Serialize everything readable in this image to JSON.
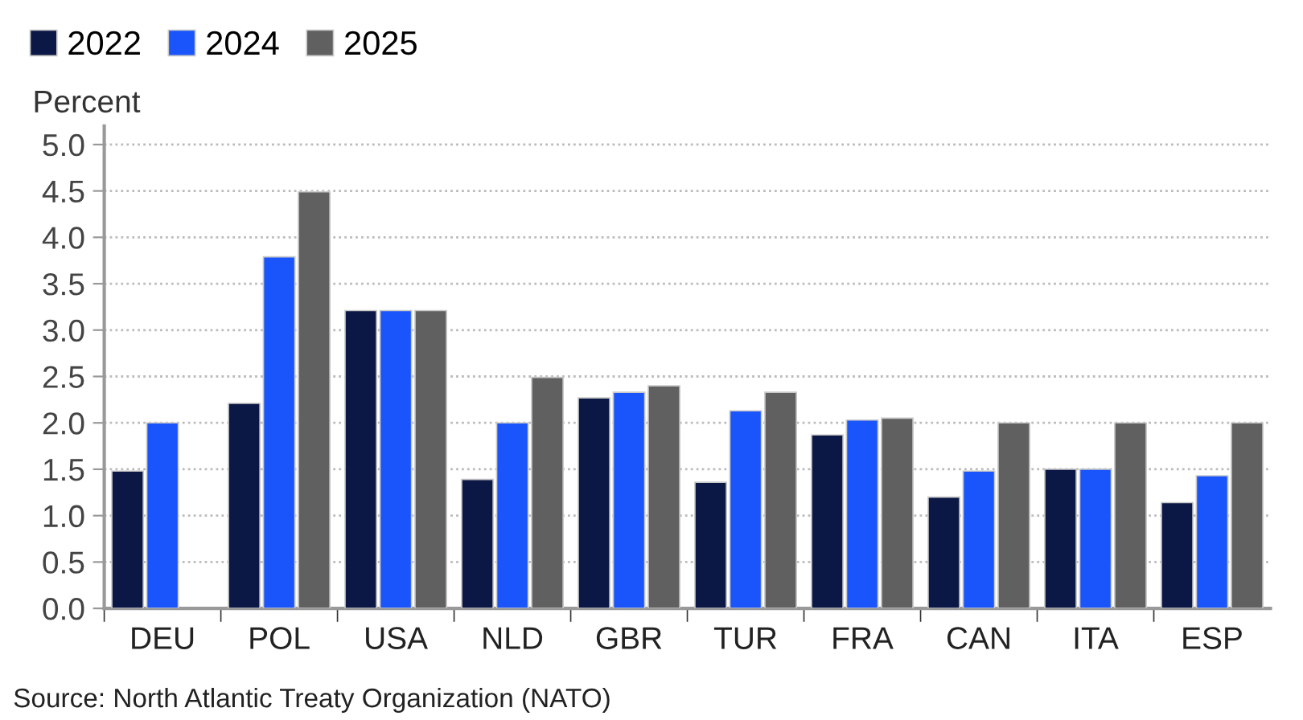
{
  "chart_data": {
    "type": "bar",
    "ylabel": "Percent",
    "categories": [
      "DEU",
      "POL",
      "USA",
      "NLD",
      "GBR",
      "TUR",
      "FRA",
      "CAN",
      "ITA",
      "ESP"
    ],
    "series": [
      {
        "name": "2022",
        "color": "#0b1745",
        "values": [
          1.48,
          2.21,
          3.21,
          1.39,
          2.27,
          1.36,
          1.87,
          1.2,
          1.5,
          1.14
        ]
      },
      {
        "name": "2024",
        "color": "#1a55fb",
        "values": [
          2.0,
          3.79,
          3.21,
          2.0,
          2.33,
          2.13,
          2.03,
          1.48,
          1.5,
          1.43
        ]
      },
      {
        "name": "2025",
        "color": "#606060",
        "values": [
          null,
          4.49,
          3.21,
          2.49,
          2.4,
          2.33,
          2.05,
          2.0,
          2.0,
          2.0
        ]
      }
    ],
    "ylim": [
      0,
      5.2
    ],
    "yticks": [
      {
        "value": 0,
        "label": "0.0"
      },
      {
        "value": 0.5,
        "label": "0.5"
      },
      {
        "value": 1,
        "label": "1.0"
      },
      {
        "value": 1.5,
        "label": "1.5"
      },
      {
        "value": 2,
        "label": "2.0"
      },
      {
        "value": 2.5,
        "label": "2.5"
      },
      {
        "value": 3,
        "label": "3.0"
      },
      {
        "value": 3.5,
        "label": "3.5"
      },
      {
        "value": 4,
        "label": "4.0"
      },
      {
        "value": 4.5,
        "label": "4.5"
      },
      {
        "value": 5,
        "label": "5.0"
      }
    ],
    "grid": "y",
    "legend": "top left",
    "annotations": [
      "Source: North Atlantic Treaty Organization (NATO)"
    ]
  }
}
